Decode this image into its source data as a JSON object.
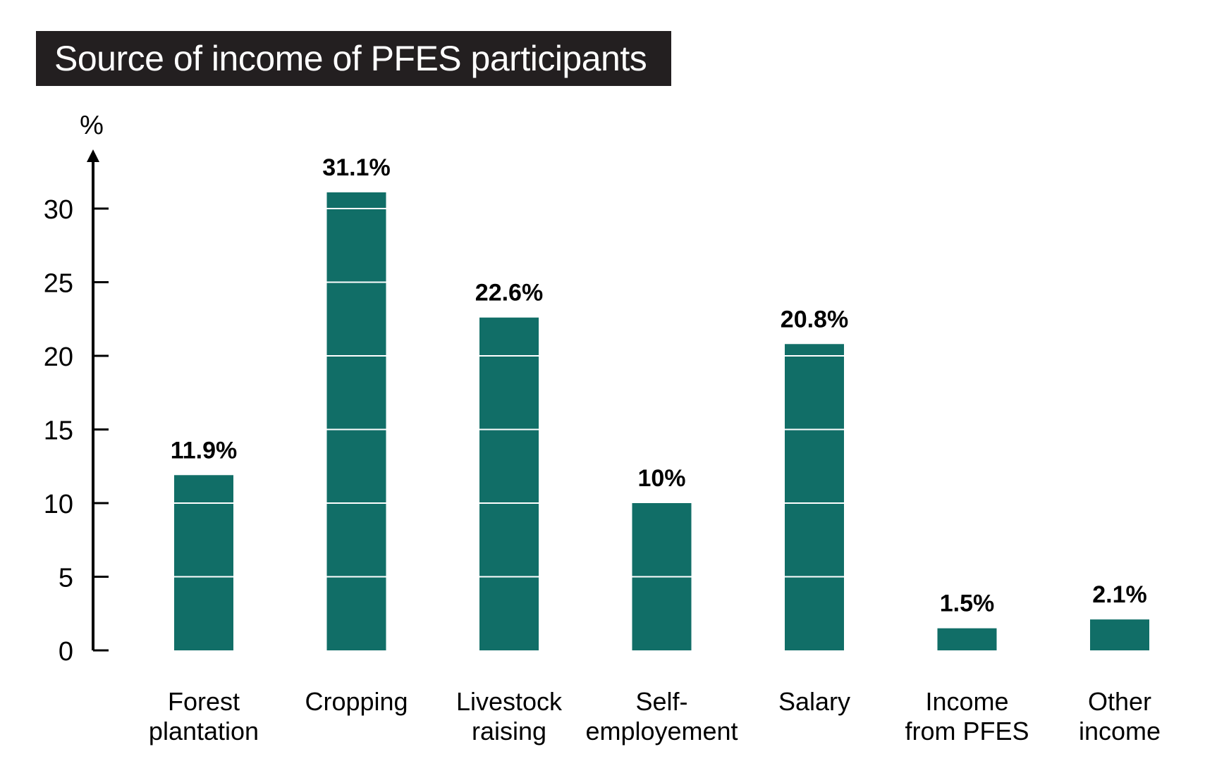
{
  "chart_data": {
    "type": "bar",
    "title": "Source of income of PFES participants",
    "ylabel": "%",
    "xlabel": "",
    "ylim": [
      0,
      32
    ],
    "yticks": [
      0,
      5,
      10,
      15,
      20,
      25,
      30
    ],
    "categories": [
      [
        "Forest",
        "plantation"
      ],
      [
        "Cropping"
      ],
      [
        "Livestock",
        "raising"
      ],
      [
        "Self-",
        "employement"
      ],
      [
        "Salary"
      ],
      [
        "Income",
        "from PFES"
      ],
      [
        "Other",
        "income"
      ]
    ],
    "values": [
      11.9,
      31.1,
      22.6,
      10,
      20.8,
      1.5,
      2.1
    ],
    "value_labels": [
      "11.9%",
      "31.1%",
      "22.6%",
      "10%",
      "20.8%",
      "1.5%",
      "2.1%"
    ],
    "bar_color": "#116e67",
    "grid": "white lines inside bars at tick values",
    "legend": "none"
  }
}
